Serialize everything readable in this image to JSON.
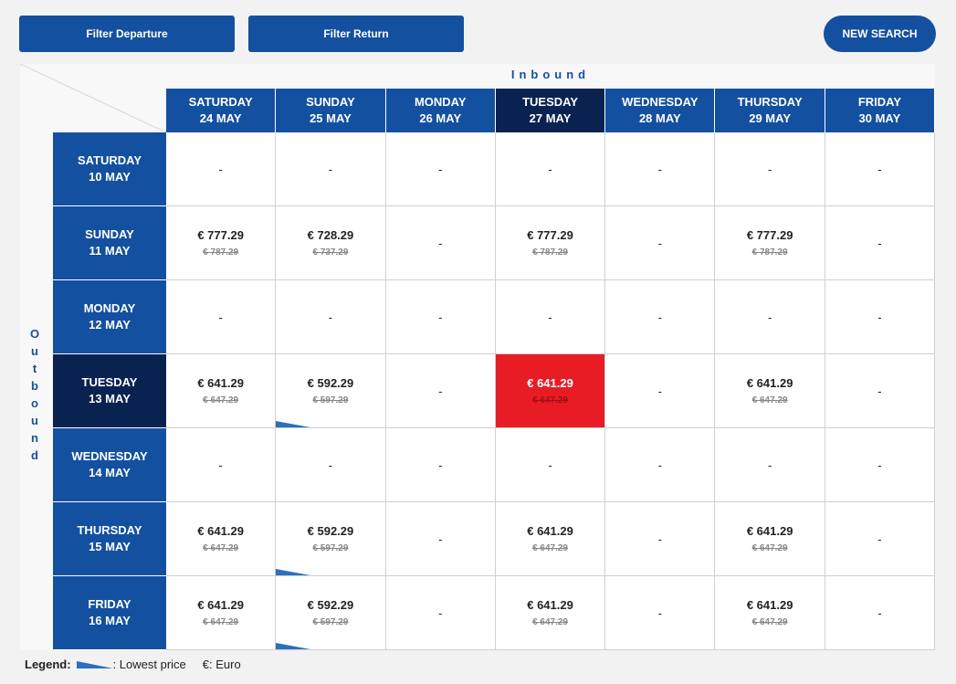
{
  "toolbar": {
    "filter_departure": "Filter Departure",
    "filter_return": "Filter Return",
    "new_search": "NEW SEARCH"
  },
  "inbound_label": "Inbound",
  "outbound_label": "Outbound",
  "colors": {
    "header": "#1450a0",
    "selected_header": "#0a2250",
    "selected_cell": "#e81c24",
    "lowest": "#2a6fc0"
  },
  "columns": [
    {
      "day": "SATURDAY",
      "date": "24 MAY"
    },
    {
      "day": "SUNDAY",
      "date": "25 MAY"
    },
    {
      "day": "MONDAY",
      "date": "26 MAY"
    },
    {
      "day": "TUESDAY",
      "date": "27 MAY",
      "selected": true
    },
    {
      "day": "WEDNESDAY",
      "date": "28 MAY"
    },
    {
      "day": "THURSDAY",
      "date": "29 MAY"
    },
    {
      "day": "FRIDAY",
      "date": "30 MAY"
    }
  ],
  "rows": [
    {
      "day": "SATURDAY",
      "date": "10 MAY",
      "cells": [
        null,
        null,
        null,
        null,
        null,
        null,
        null
      ]
    },
    {
      "day": "SUNDAY",
      "date": "11 MAY",
      "cells": [
        {
          "price": "€ 777.29",
          "old": "€ 787.29"
        },
        {
          "price": "€ 728.29",
          "old": "€ 737.29"
        },
        null,
        {
          "price": "€ 777.29",
          "old": "€ 787.29"
        },
        null,
        {
          "price": "€ 777.29",
          "old": "€ 787.29"
        },
        null
      ]
    },
    {
      "day": "MONDAY",
      "date": "12 MAY",
      "cells": [
        null,
        null,
        null,
        null,
        null,
        null,
        null
      ]
    },
    {
      "day": "TUESDAY",
      "date": "13 MAY",
      "selected": true,
      "cells": [
        {
          "price": "€ 641.29",
          "old": "€ 647.29"
        },
        {
          "price": "€ 592.29",
          "old": "€ 597.29",
          "lowest": true
        },
        null,
        {
          "price": "€ 641.29",
          "old": "€ 647.29",
          "selected": true
        },
        null,
        {
          "price": "€ 641.29",
          "old": "€ 647.29"
        },
        null
      ]
    },
    {
      "day": "WEDNESDAY",
      "date": "14 MAY",
      "cells": [
        null,
        null,
        null,
        null,
        null,
        null,
        null
      ]
    },
    {
      "day": "THURSDAY",
      "date": "15 MAY",
      "cells": [
        {
          "price": "€ 641.29",
          "old": "€ 647.29"
        },
        {
          "price": "€ 592.29",
          "old": "€ 597.29",
          "lowest": true
        },
        null,
        {
          "price": "€ 641.29",
          "old": "€ 647.29"
        },
        null,
        {
          "price": "€ 641.29",
          "old": "€ 647.29"
        },
        null
      ]
    },
    {
      "day": "FRIDAY",
      "date": "16 MAY",
      "cells": [
        {
          "price": "€ 641.29",
          "old": "€ 647.29"
        },
        {
          "price": "€ 592.29",
          "old": "€ 597.29",
          "lowest": true
        },
        null,
        {
          "price": "€ 641.29",
          "old": "€ 647.29"
        },
        null,
        {
          "price": "€ 641.29",
          "old": "€ 647.29"
        },
        null
      ]
    }
  ],
  "empty_text": "-",
  "legend": {
    "title": "Legend:",
    "lowest": ": Lowest price",
    "euro": "€: Euro"
  }
}
